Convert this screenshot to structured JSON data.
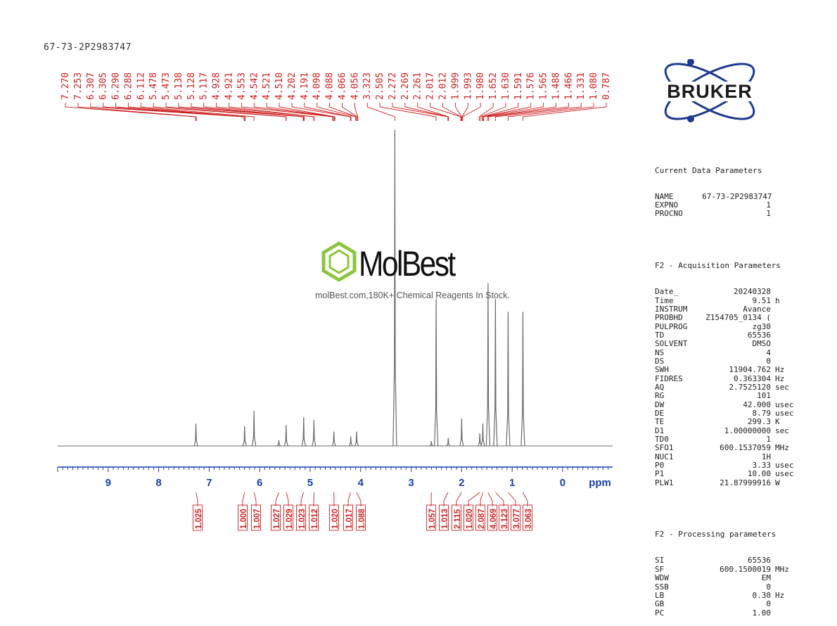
{
  "sample_id": "67-73-2P2983747",
  "logo": {
    "brand": "BRUKER",
    "primary": "#1f3a8f"
  },
  "watermark": {
    "name": "MolBest",
    "tagline": "molBest.com,180K+ Chemical Reagents In Stock.",
    "icon": "benzene-ring-icon",
    "accent": "#8cc63f"
  },
  "parameters": {
    "current": {
      "title": "Current Data Parameters",
      "rows": [
        {
          "k": "NAME",
          "v": "67-73-2P2983747",
          "u": ""
        },
        {
          "k": "EXPNO",
          "v": "1",
          "u": ""
        },
        {
          "k": "PROCNO",
          "v": "1",
          "u": ""
        }
      ]
    },
    "acquisition": {
      "title": "F2 - Acquisition Parameters",
      "rows": [
        {
          "k": "Date_",
          "v": "20240328",
          "u": ""
        },
        {
          "k": "Time",
          "v": "9.51",
          "u": "h"
        },
        {
          "k": "INSTRUM",
          "v": "Avance",
          "u": ""
        },
        {
          "k": "PROBHD",
          "v": "Z154705_0134 (",
          "u": ""
        },
        {
          "k": "PULPROG",
          "v": "zg30",
          "u": ""
        },
        {
          "k": "TD",
          "v": "65536",
          "u": ""
        },
        {
          "k": "SOLVENT",
          "v": "DMSO",
          "u": ""
        },
        {
          "k": "NS",
          "v": "4",
          "u": ""
        },
        {
          "k": "DS",
          "v": "0",
          "u": ""
        },
        {
          "k": "SWH",
          "v": "11904.762",
          "u": "Hz"
        },
        {
          "k": "FIDRES",
          "v": "0.363304",
          "u": "Hz"
        },
        {
          "k": "AQ",
          "v": "2.7525120",
          "u": "sec"
        },
        {
          "k": "RG",
          "v": "101",
          "u": ""
        },
        {
          "k": "DW",
          "v": "42.000",
          "u": "usec"
        },
        {
          "k": "DE",
          "v": "8.79",
          "u": "usec"
        },
        {
          "k": "TE",
          "v": "299.3",
          "u": "K"
        },
        {
          "k": "D1",
          "v": "1.00000000",
          "u": "sec"
        },
        {
          "k": "TD0",
          "v": "1",
          "u": ""
        },
        {
          "k": "SFO1",
          "v": "600.1537059",
          "u": "MHz"
        },
        {
          "k": "NUC1",
          "v": "1H",
          "u": ""
        },
        {
          "k": "P0",
          "v": "3.33",
          "u": "usec"
        },
        {
          "k": "P1",
          "v": "10.00",
          "u": "usec"
        },
        {
          "k": "PLW1",
          "v": "21.87999916",
          "u": "W"
        }
      ]
    },
    "processing": {
      "title": "F2 - Processing parameters",
      "rows": [
        {
          "k": "SI",
          "v": "65536",
          "u": ""
        },
        {
          "k": "SF",
          "v": "600.1500019",
          "u": "MHz"
        },
        {
          "k": "WDW",
          "v": "EM",
          "u": ""
        },
        {
          "k": "SSB",
          "v": "0",
          "u": ""
        },
        {
          "k": "LB",
          "v": "0.30",
          "u": "Hz"
        },
        {
          "k": "GB",
          "v": "0",
          "u": ""
        },
        {
          "k": "PC",
          "v": "1.00",
          "u": ""
        }
      ]
    }
  },
  "chart_data": {
    "type": "line",
    "xlabel": "ppm",
    "xlim": [
      10,
      -1
    ],
    "x_reversed": true,
    "x_ticks": [
      "9",
      "8",
      "7",
      "6",
      "5",
      "4",
      "3",
      "2",
      "1",
      "0"
    ],
    "colors": {
      "spectrum": "#6a6a6a",
      "axis": "#1a3fb0",
      "annotation": "#cc1f1f"
    },
    "peak_labels": [
      "7.270",
      "7.253",
      "6.307",
      "6.305",
      "6.290",
      "6.288",
      "6.112",
      "5.478",
      "5.473",
      "5.138",
      "5.128",
      "5.117",
      "4.928",
      "4.921",
      "4.553",
      "4.542",
      "4.521",
      "4.510",
      "4.202",
      "4.191",
      "4.098",
      "4.088",
      "4.066",
      "4.056",
      "3.323",
      "2.505",
      "2.272",
      "2.269",
      "2.261",
      "2.017",
      "2.012",
      "1.999",
      "1.993",
      "1.980",
      "1.652",
      "1.630",
      "1.591",
      "1.576",
      "1.565",
      "1.488",
      "1.466",
      "1.331",
      "1.080",
      "0.787"
    ],
    "peaks": [
      {
        "ppm": 7.262,
        "height": 0.07
      },
      {
        "ppm": 6.298,
        "height": 0.062
      },
      {
        "ppm": 6.112,
        "height": 0.11
      },
      {
        "ppm": 5.62,
        "height": 0.018
      },
      {
        "ppm": 5.476,
        "height": 0.065
      },
      {
        "ppm": 5.128,
        "height": 0.09
      },
      {
        "ppm": 4.925,
        "height": 0.082
      },
      {
        "ppm": 4.53,
        "height": 0.045
      },
      {
        "ppm": 4.196,
        "height": 0.03
      },
      {
        "ppm": 4.08,
        "height": 0.045
      },
      {
        "ppm": 3.323,
        "height": 0.99
      },
      {
        "ppm": 2.6,
        "height": 0.015
      },
      {
        "ppm": 2.505,
        "height": 0.46
      },
      {
        "ppm": 2.265,
        "height": 0.025
      },
      {
        "ppm": 2.0,
        "height": 0.086
      },
      {
        "ppm": 1.64,
        "height": 0.04
      },
      {
        "ppm": 1.58,
        "height": 0.07
      },
      {
        "ppm": 1.477,
        "height": 0.51
      },
      {
        "ppm": 1.331,
        "height": 0.46
      },
      {
        "ppm": 1.08,
        "height": 0.42
      },
      {
        "ppm": 0.787,
        "height": 0.42
      }
    ],
    "integrals": [
      {
        "ppm": 7.26,
        "value": "1.025"
      },
      {
        "ppm": 6.3,
        "value": "1.000"
      },
      {
        "ppm": 6.11,
        "value": "1.007"
      },
      {
        "ppm": 5.62,
        "value": "1.027"
      },
      {
        "ppm": 5.47,
        "value": "1.029"
      },
      {
        "ppm": 5.13,
        "value": "1.023"
      },
      {
        "ppm": 4.92,
        "value": "1.012"
      },
      {
        "ppm": 4.53,
        "value": "1.020"
      },
      {
        "ppm": 4.2,
        "value": "1.017"
      },
      {
        "ppm": 4.08,
        "value": "1.088"
      },
      {
        "ppm": 2.6,
        "value": "1.057"
      },
      {
        "ppm": 2.27,
        "value": "1.013"
      },
      {
        "ppm": 2.0,
        "value": "2.115"
      },
      {
        "ppm": 1.64,
        "value": "1.020"
      },
      {
        "ppm": 1.58,
        "value": "2.087"
      },
      {
        "ppm": 1.48,
        "value": "4.069"
      },
      {
        "ppm": 1.33,
        "value": "3.123"
      },
      {
        "ppm": 1.08,
        "value": "3.077"
      },
      {
        "ppm": 0.79,
        "value": "3.063"
      }
    ]
  }
}
